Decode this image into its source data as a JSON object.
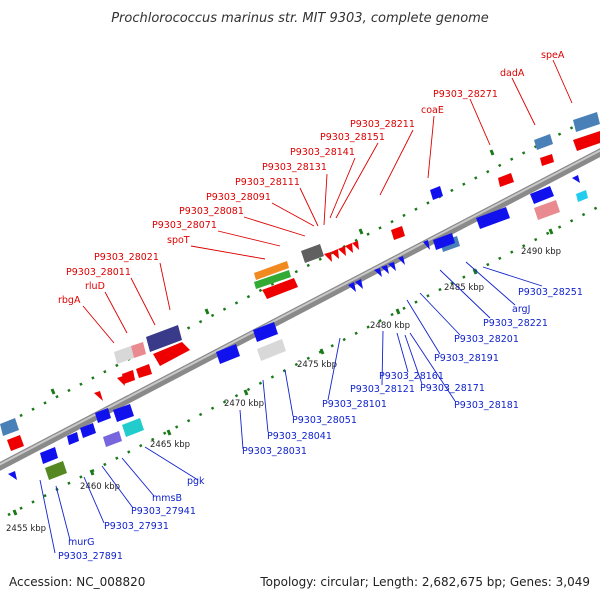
{
  "title": "Prochlorococcus marinus str. MIT 9303, complete genome",
  "footer": {
    "accession": "Accession: NC_008820",
    "topology": "Topology: circular; Length: 2,682,675 bp; Genes: 3,049"
  },
  "colors": {
    "upper_label": "#dd0000",
    "lower_label": "#1122cc",
    "backbone": "#888888",
    "tick": "#1a7a1a"
  },
  "ruler": [
    "2455 kbp",
    "2460 kbp",
    "2465 kbp",
    "2470 kbp",
    "2475 kbp",
    "2480 kbp",
    "2485 kbp",
    "2490 kbp"
  ],
  "upper_labels": [
    "speA",
    "dadA",
    "P9303_28271",
    "coaE",
    "P9303_28211",
    "P9303_28151",
    "P9303_28141",
    "P9303_28131",
    "P9303_28111",
    "P9303_28091",
    "P9303_28081",
    "P9303_28071",
    "spoT",
    "P9303_28021",
    "P9303_28011",
    "rluD",
    "rbgA"
  ],
  "lower_labels": [
    "P9303_28251",
    "argJ",
    "P9303_28221",
    "P9303_28201",
    "P9303_28191",
    "P9303_28171",
    "P9303_28181",
    "P9303_28161",
    "P9303_28121",
    "P9303_28101",
    "P9303_28051",
    "P9303_28041",
    "P9303_28031",
    "pgk",
    "mmsB",
    "P9303_27941",
    "P9303_27931",
    "murG",
    "P9303_27891"
  ]
}
